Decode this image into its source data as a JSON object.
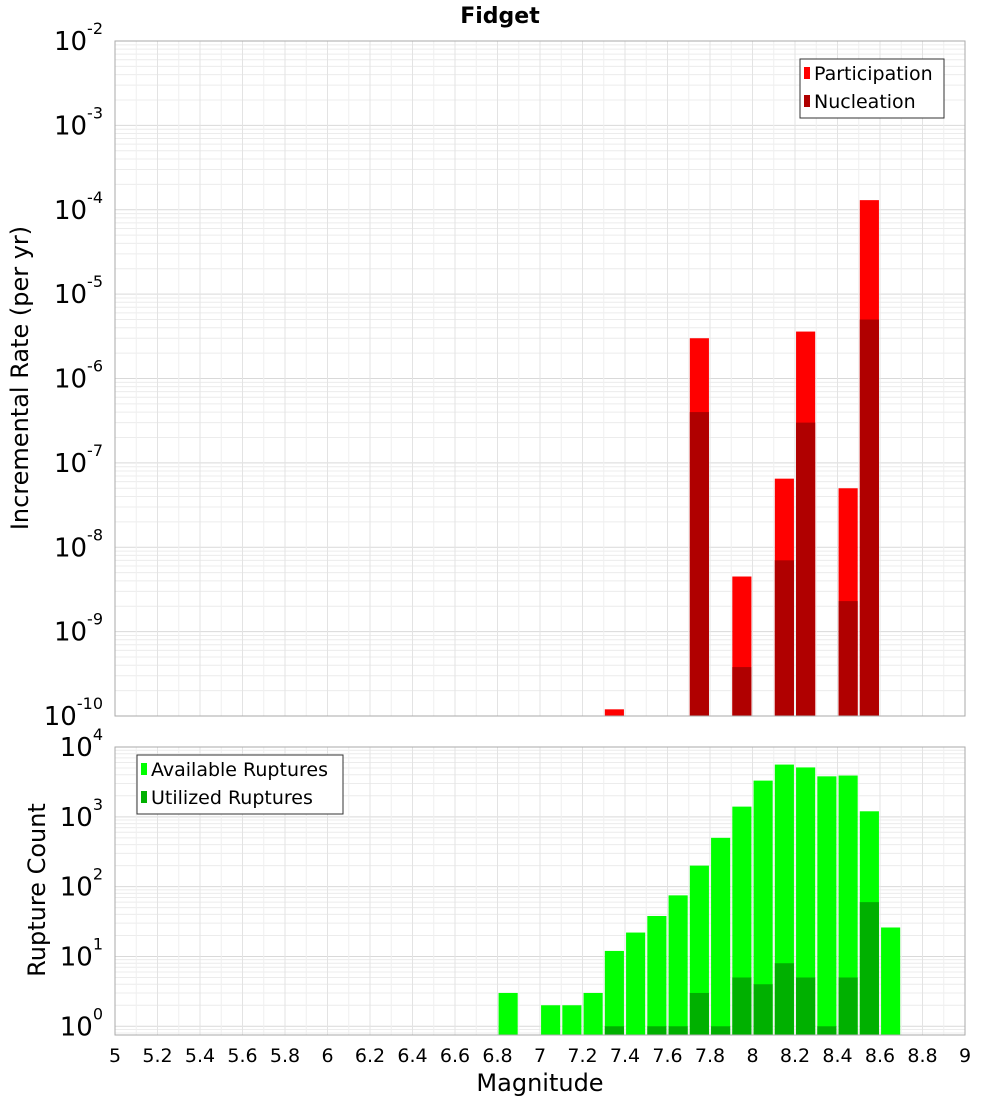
{
  "chart_data": [
    {
      "type": "bar",
      "title": "Fidget",
      "ylabel": "Incremental Rate (per yr)",
      "y_scale": "log",
      "ylim": [
        1e-10,
        0.01
      ],
      "xlim": [
        5,
        9
      ],
      "grid": true,
      "legend_position": "top-right",
      "bar_width": 0.09,
      "y_ticks": [
        {
          "base": "10",
          "exp": "-2"
        },
        {
          "base": "10",
          "exp": "-3"
        },
        {
          "base": "10",
          "exp": "-4"
        },
        {
          "base": "10",
          "exp": "-5"
        },
        {
          "base": "10",
          "exp": "-6"
        },
        {
          "base": "10",
          "exp": "-7"
        },
        {
          "base": "10",
          "exp": "-8"
        },
        {
          "base": "10",
          "exp": "-9"
        },
        {
          "base": "10",
          "exp": "-10"
        }
      ],
      "series": [
        {
          "name": "Participation",
          "color": "#ff0000",
          "points": [
            {
              "x": 7.35,
              "y": 1.2e-10
            },
            {
              "x": 7.75,
              "y": 3e-06
            },
            {
              "x": 7.95,
              "y": 4.5e-09
            },
            {
              "x": 8.15,
              "y": 6.5e-08
            },
            {
              "x": 8.25,
              "y": 3.6e-06
            },
            {
              "x": 8.45,
              "y": 5e-08
            },
            {
              "x": 8.55,
              "y": 0.00013
            }
          ]
        },
        {
          "name": "Nucleation",
          "color": "#b00000",
          "points": [
            {
              "x": 7.75,
              "y": 4e-07
            },
            {
              "x": 7.95,
              "y": 3.8e-10
            },
            {
              "x": 8.15,
              "y": 7e-09
            },
            {
              "x": 8.25,
              "y": 3e-07
            },
            {
              "x": 8.45,
              "y": 2.3e-09
            },
            {
              "x": 8.55,
              "y": 5e-06
            }
          ]
        }
      ]
    },
    {
      "type": "bar",
      "xlabel": "Magnitude",
      "ylabel": "Rupture Count",
      "y_scale": "log",
      "ylim": [
        0.75,
        10000
      ],
      "xlim": [
        5,
        9
      ],
      "grid": true,
      "legend_position": "top-left",
      "bar_width": 0.09,
      "x_ticks": [
        "5",
        "5.2",
        "5.4",
        "5.6",
        "5.8",
        "6",
        "6.2",
        "6.4",
        "6.6",
        "6.8",
        "7",
        "7.2",
        "7.4",
        "7.6",
        "7.8",
        "8",
        "8.2",
        "8.4",
        "8.6",
        "8.8",
        "9"
      ],
      "y_ticks": [
        {
          "base": "10",
          "exp": "4"
        },
        {
          "base": "10",
          "exp": "3"
        },
        {
          "base": "10",
          "exp": "2"
        },
        {
          "base": "10",
          "exp": "1"
        },
        {
          "base": "10",
          "exp": "0"
        }
      ],
      "series": [
        {
          "name": "Available Ruptures",
          "color": "#00ff00",
          "points": [
            {
              "x": 6.85,
              "y": 3
            },
            {
              "x": 7.05,
              "y": 2
            },
            {
              "x": 7.15,
              "y": 2
            },
            {
              "x": 7.25,
              "y": 3
            },
            {
              "x": 7.35,
              "y": 12
            },
            {
              "x": 7.45,
              "y": 22
            },
            {
              "x": 7.55,
              "y": 38
            },
            {
              "x": 7.65,
              "y": 75
            },
            {
              "x": 7.75,
              "y": 200
            },
            {
              "x": 7.85,
              "y": 500
            },
            {
              "x": 7.95,
              "y": 1400
            },
            {
              "x": 8.05,
              "y": 3300
            },
            {
              "x": 8.15,
              "y": 5600
            },
            {
              "x": 8.25,
              "y": 5100
            },
            {
              "x": 8.35,
              "y": 3800
            },
            {
              "x": 8.45,
              "y": 3900
            },
            {
              "x": 8.55,
              "y": 1200
            },
            {
              "x": 8.65,
              "y": 26
            }
          ]
        },
        {
          "name": "Utilized Ruptures",
          "color": "#00b000",
          "points": [
            {
              "x": 7.35,
              "y": 1
            },
            {
              "x": 7.55,
              "y": 1
            },
            {
              "x": 7.65,
              "y": 1
            },
            {
              "x": 7.75,
              "y": 3
            },
            {
              "x": 7.85,
              "y": 1
            },
            {
              "x": 7.95,
              "y": 5
            },
            {
              "x": 8.05,
              "y": 4
            },
            {
              "x": 8.15,
              "y": 8
            },
            {
              "x": 8.25,
              "y": 5
            },
            {
              "x": 8.35,
              "y": 1
            },
            {
              "x": 8.45,
              "y": 5
            },
            {
              "x": 8.55,
              "y": 60
            }
          ]
        }
      ]
    }
  ]
}
